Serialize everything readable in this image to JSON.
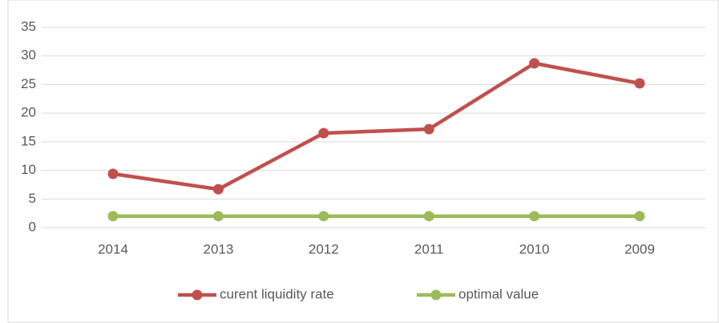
{
  "chart_data": {
    "type": "line",
    "categories": [
      "2014",
      "2013",
      "2012",
      "2011",
      "2010",
      "2009"
    ],
    "series": [
      {
        "name": "curent liquidity rate",
        "color": "#c0504d",
        "values": [
          9.4,
          6.7,
          16.5,
          17.2,
          28.7,
          25.2
        ]
      },
      {
        "name": "optimal value",
        "color": "#9bbb59",
        "values": [
          2,
          2,
          2,
          2,
          2,
          2
        ]
      }
    ],
    "ylim": [
      0,
      35
    ],
    "yticks": [
      0,
      5,
      10,
      15,
      20,
      25,
      30,
      35
    ],
    "grid": true,
    "legend": "bottom"
  }
}
